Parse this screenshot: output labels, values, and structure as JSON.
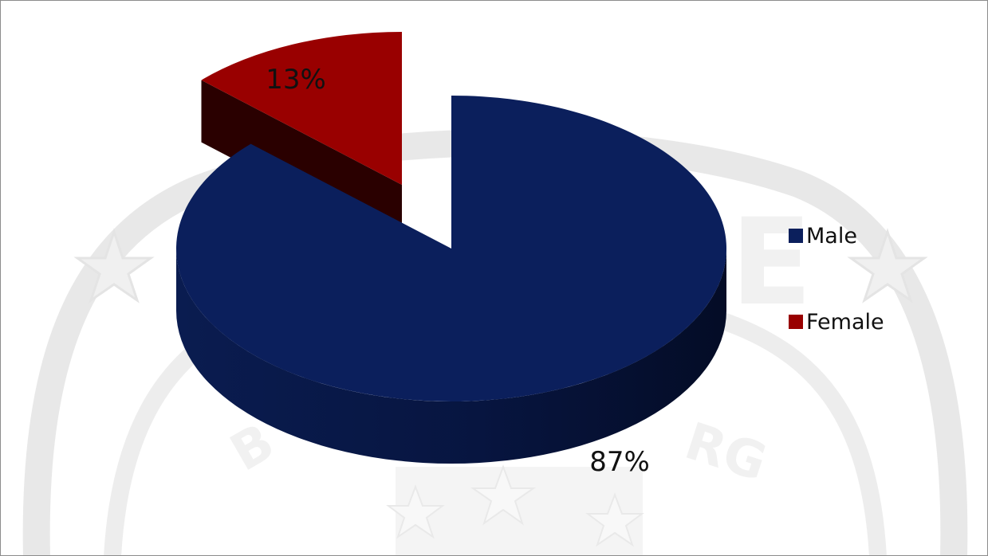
{
  "chart_data": {
    "type": "pie",
    "style": "3d-exploded",
    "categories": [
      "Male",
      "Female"
    ],
    "values": [
      87,
      13
    ],
    "data_labels": [
      "87%",
      "13%"
    ],
    "colors": [
      "#0b1f5c",
      "#990000"
    ],
    "legend": {
      "placement": "right",
      "entries": [
        "Male",
        "Female"
      ]
    },
    "title": "",
    "background_watermark": "faded emblem with stars (decorative)"
  }
}
